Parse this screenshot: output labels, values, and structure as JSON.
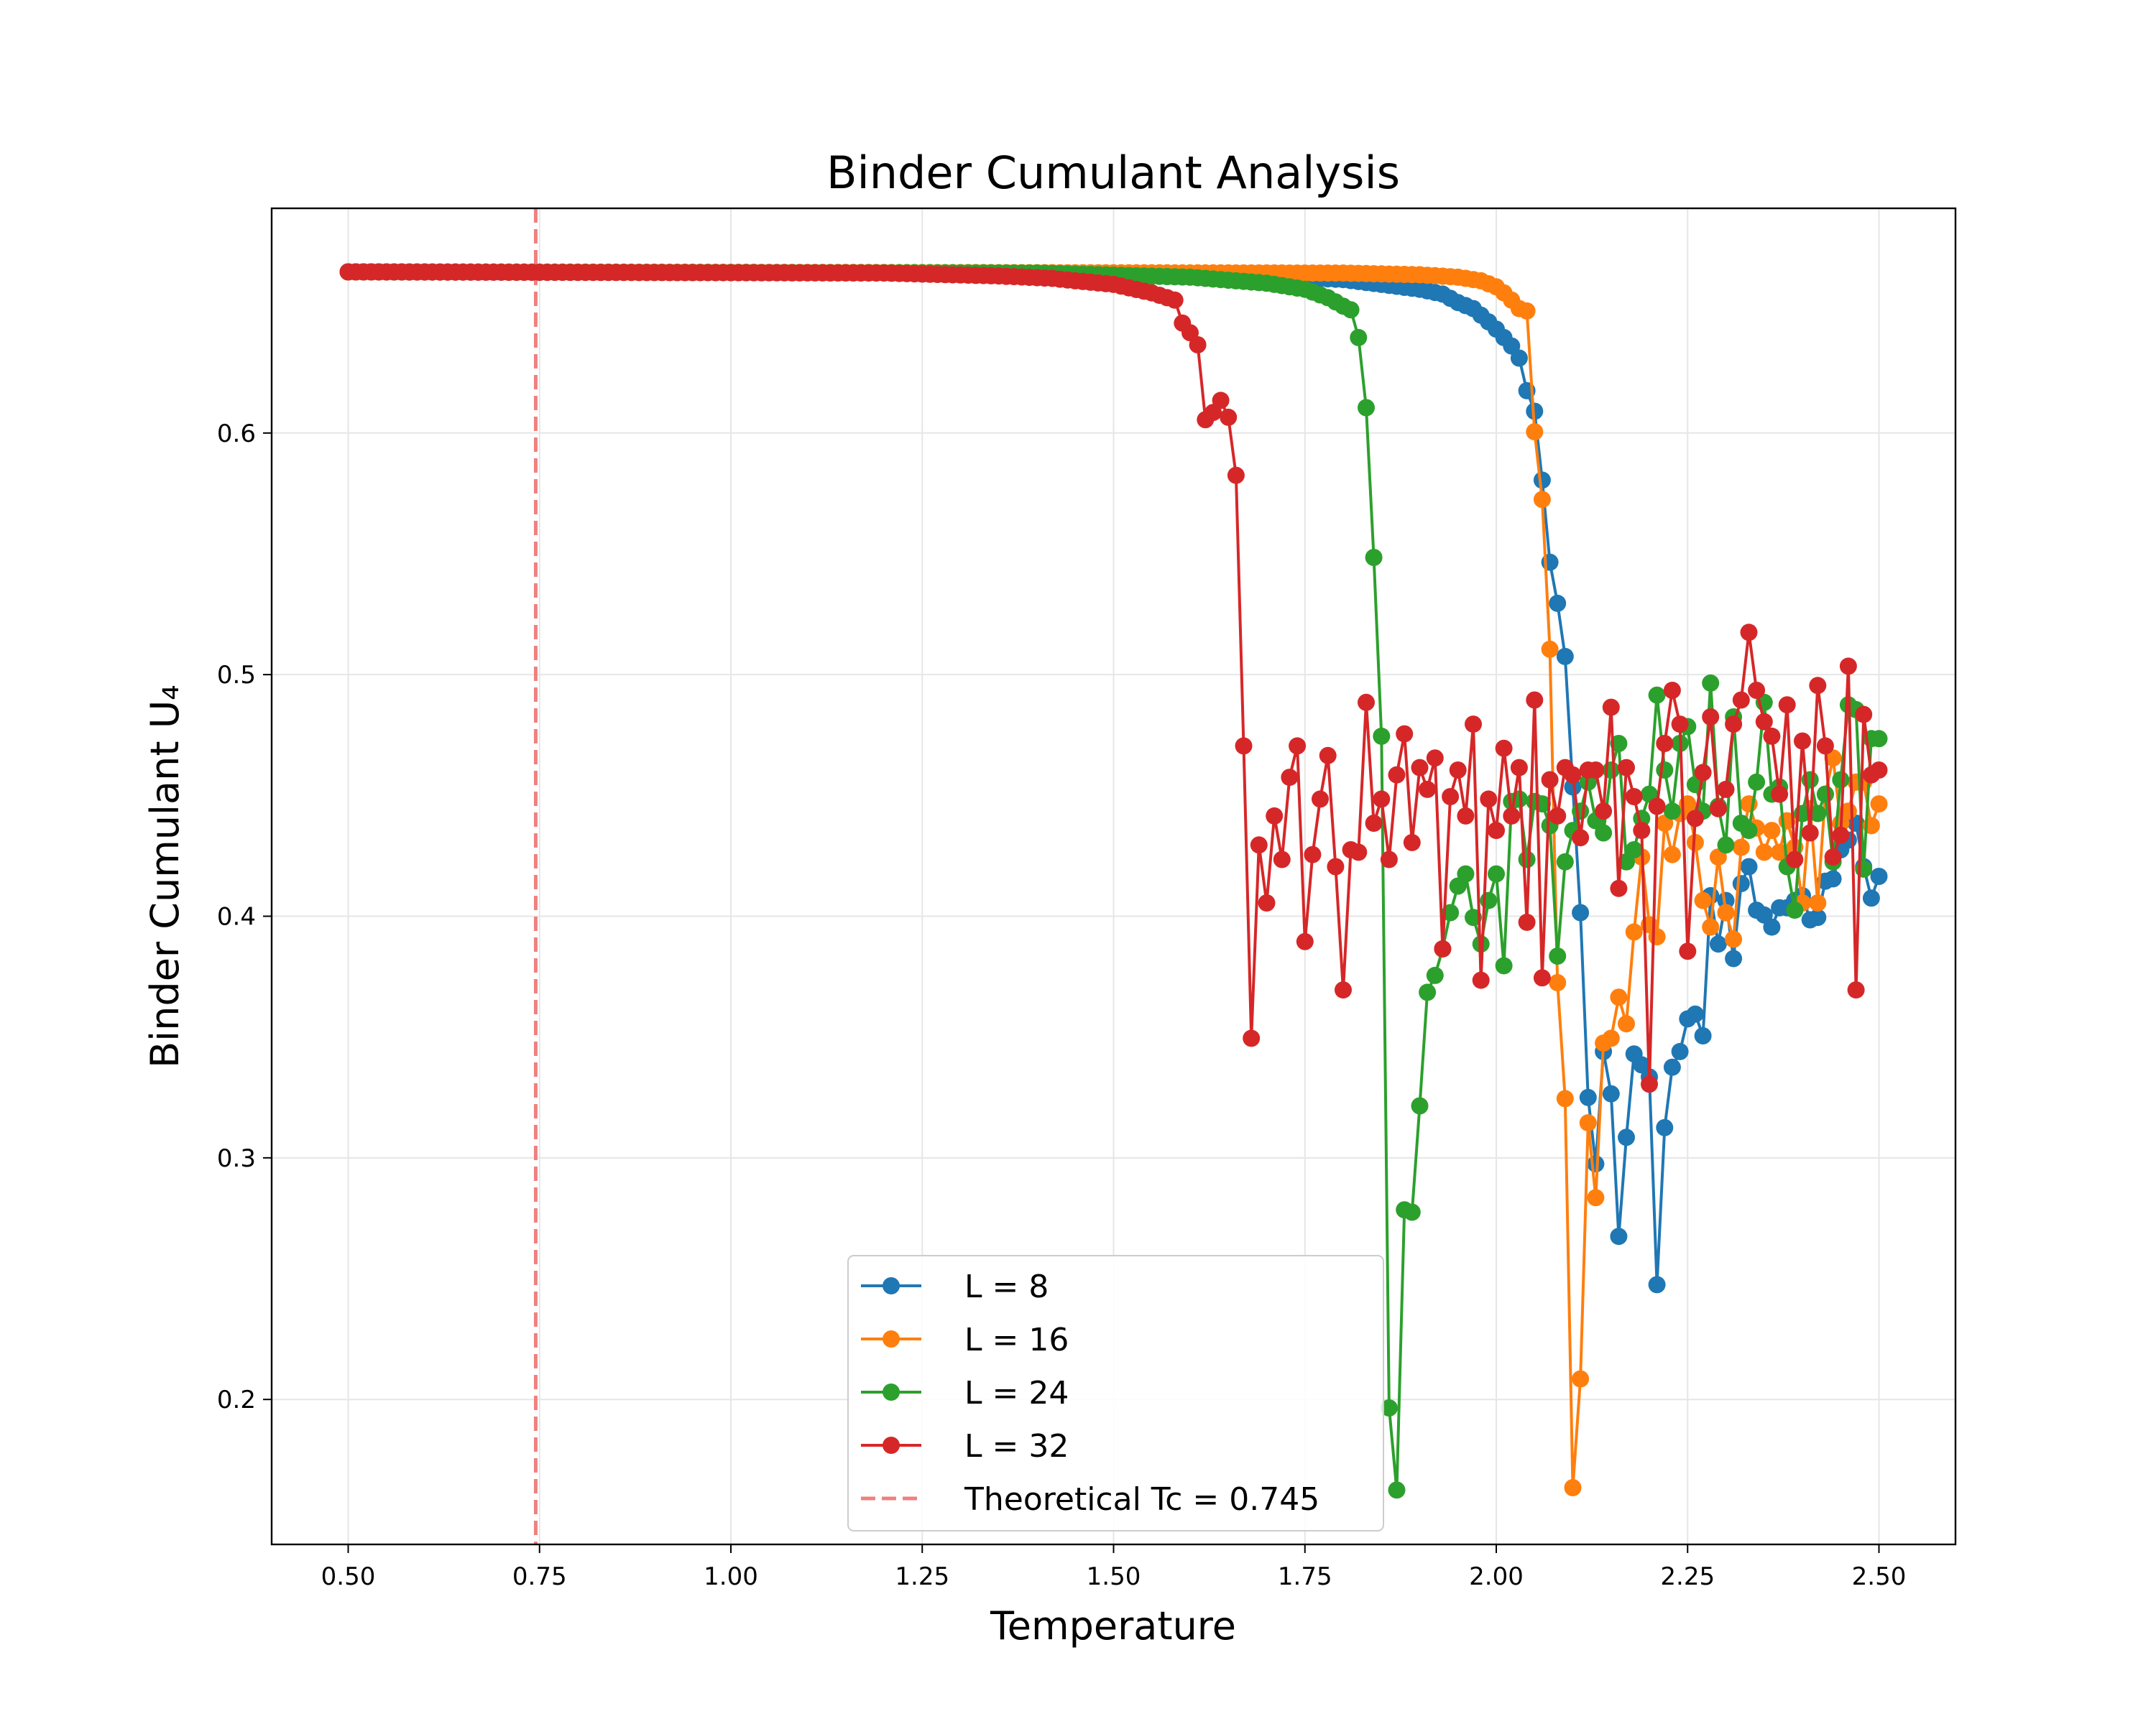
{
  "chart_data": {
    "type": "line",
    "title": "Binder Cumulant Analysis",
    "xlabel": "Temperature",
    "ylabel": "Binder Cumulant U₄",
    "xlim": [
      0.4,
      2.6
    ],
    "ylim": [
      0.14,
      0.693
    ],
    "xticks": [
      0.5,
      0.75,
      1.0,
      1.25,
      1.5,
      1.75,
      2.0,
      2.25,
      2.5
    ],
    "xtick_labels": [
      "0.50",
      "0.75",
      "1.00",
      "1.25",
      "1.50",
      "1.75",
      "2.00",
      "2.25",
      "2.50"
    ],
    "yticks": [
      0.2,
      0.3,
      0.4,
      0.5,
      0.6
    ],
    "ytick_labels": [
      "0.2",
      "0.3",
      "0.4",
      "0.5",
      "0.6"
    ],
    "grid": true,
    "legend_position": "lower-center",
    "reference_line": {
      "x": 0.745,
      "label": "Theoretical Tc = 0.745",
      "color": "#f08080",
      "style": "dashed"
    },
    "series": [
      {
        "name": "L = 8",
        "color": "#1f77b4",
        "points": [
          [
            0.5,
            0.6667
          ],
          [
            1.5,
            0.6662
          ],
          [
            1.7,
            0.665
          ],
          [
            1.8,
            0.6635
          ],
          [
            1.85,
            0.6615
          ],
          [
            1.9,
            0.6595
          ],
          [
            1.93,
            0.6575
          ],
          [
            1.95,
            0.654
          ],
          [
            1.97,
            0.6515
          ],
          [
            1.99,
            0.646
          ],
          [
            2.0,
            0.643
          ],
          [
            2.02,
            0.636
          ],
          [
            2.03,
            0.631
          ],
          [
            2.04,
            0.6175
          ],
          [
            2.05,
            0.609
          ],
          [
            2.06,
            0.5805
          ],
          [
            2.07,
            0.5465
          ],
          [
            2.08,
            0.5295
          ],
          [
            2.09,
            0.5075
          ],
          [
            2.1,
            0.4535
          ],
          [
            2.11,
            0.4015
          ],
          [
            2.12,
            0.325
          ],
          [
            2.13,
            0.2975
          ],
          [
            2.14,
            0.344
          ],
          [
            2.15,
            0.3265
          ],
          [
            2.16,
            0.2675
          ],
          [
            2.17,
            0.3085
          ],
          [
            2.18,
            0.343
          ],
          [
            2.19,
            0.3385
          ],
          [
            2.2,
            0.3335
          ],
          [
            2.21,
            0.2475
          ],
          [
            2.22,
            0.3125
          ],
          [
            2.23,
            0.3375
          ],
          [
            2.24,
            0.344
          ],
          [
            2.25,
            0.3575
          ],
          [
            2.26,
            0.3595
          ],
          [
            2.27,
            0.3505
          ],
          [
            2.28,
            0.4085
          ],
          [
            2.29,
            0.3885
          ],
          [
            2.3,
            0.4065
          ],
          [
            2.31,
            0.3825
          ],
          [
            2.32,
            0.4135
          ],
          [
            2.33,
            0.4205
          ],
          [
            2.34,
            0.4025
          ],
          [
            2.35,
            0.4005
          ],
          [
            2.36,
            0.3955
          ],
          [
            2.37,
            0.4035
          ],
          [
            2.38,
            0.4035
          ],
          [
            2.39,
            0.4065
          ],
          [
            2.4,
            0.4085
          ],
          [
            2.41,
            0.3985
          ],
          [
            2.42,
            0.3995
          ],
          [
            2.43,
            0.4145
          ],
          [
            2.44,
            0.4155
          ],
          [
            2.45,
            0.4275
          ],
          [
            2.46,
            0.4315
          ],
          [
            2.47,
            0.4385
          ],
          [
            2.48,
            0.4205
          ],
          [
            2.49,
            0.4075
          ],
          [
            2.5,
            0.4165
          ]
        ]
      },
      {
        "name": "L = 16",
        "color": "#ff7f0e",
        "points": [
          [
            0.5,
            0.6667
          ],
          [
            1.8,
            0.6662
          ],
          [
            1.9,
            0.6655
          ],
          [
            1.95,
            0.6645
          ],
          [
            1.98,
            0.663
          ],
          [
            2.0,
            0.6605
          ],
          [
            2.01,
            0.658
          ],
          [
            2.02,
            0.655
          ],
          [
            2.03,
            0.6515
          ],
          [
            2.04,
            0.6505
          ],
          [
            2.05,
            0.6005
          ],
          [
            2.06,
            0.5725
          ],
          [
            2.07,
            0.5105
          ],
          [
            2.08,
            0.3725
          ],
          [
            2.09,
            0.3245
          ],
          [
            2.1,
            0.1635
          ],
          [
            2.11,
            0.2085
          ],
          [
            2.12,
            0.3145
          ],
          [
            2.13,
            0.2835
          ],
          [
            2.14,
            0.3475
          ],
          [
            2.15,
            0.3495
          ],
          [
            2.16,
            0.3665
          ],
          [
            2.17,
            0.3555
          ],
          [
            2.18,
            0.3935
          ],
          [
            2.19,
            0.4245
          ],
          [
            2.2,
            0.3965
          ],
          [
            2.21,
            0.3915
          ],
          [
            2.22,
            0.4385
          ],
          [
            2.23,
            0.4255
          ],
          [
            2.24,
            0.4425
          ],
          [
            2.25,
            0.4465
          ],
          [
            2.26,
            0.4305
          ],
          [
            2.27,
            0.4065
          ],
          [
            2.28,
            0.3955
          ],
          [
            2.29,
            0.4245
          ],
          [
            2.3,
            0.4015
          ],
          [
            2.31,
            0.3905
          ],
          [
            2.32,
            0.4285
          ],
          [
            2.33,
            0.4465
          ],
          [
            2.34,
            0.4365
          ],
          [
            2.35,
            0.4265
          ],
          [
            2.36,
            0.4355
          ],
          [
            2.37,
            0.4265
          ],
          [
            2.38,
            0.4395
          ],
          [
            2.39,
            0.4285
          ],
          [
            2.4,
            0.4055
          ],
          [
            2.41,
            0.4445
          ],
          [
            2.42,
            0.4055
          ],
          [
            2.43,
            0.4505
          ],
          [
            2.44,
            0.4655
          ],
          [
            2.45,
            0.4385
          ],
          [
            2.46,
            0.4435
          ],
          [
            2.47,
            0.4555
          ],
          [
            2.48,
            0.4555
          ],
          [
            2.49,
            0.4375
          ],
          [
            2.5,
            0.4465
          ]
        ]
      },
      {
        "name": "L = 24",
        "color": "#2ca02c",
        "points": [
          [
            0.5,
            0.6667
          ],
          [
            1.4,
            0.6662
          ],
          [
            1.6,
            0.6645
          ],
          [
            1.7,
            0.662
          ],
          [
            1.75,
            0.6595
          ],
          [
            1.78,
            0.656
          ],
          [
            1.8,
            0.6525
          ],
          [
            1.81,
            0.651
          ],
          [
            1.82,
            0.6395
          ],
          [
            1.83,
            0.6105
          ],
          [
            1.84,
            0.5485
          ],
          [
            1.85,
            0.4745
          ],
          [
            1.86,
            0.1965
          ],
          [
            1.87,
            0.1625
          ],
          [
            1.88,
            0.2785
          ],
          [
            1.89,
            0.2775
          ],
          [
            1.9,
            0.3215
          ],
          [
            1.91,
            0.3685
          ],
          [
            1.92,
            0.3755
          ],
          [
            1.93,
            0.3865
          ],
          [
            1.94,
            0.4015
          ],
          [
            1.95,
            0.4125
          ],
          [
            1.96,
            0.4175
          ],
          [
            1.97,
            0.3995
          ],
          [
            1.98,
            0.3885
          ],
          [
            1.99,
            0.4065
          ],
          [
            2.0,
            0.4175
          ],
          [
            2.01,
            0.3795
          ],
          [
            2.02,
            0.4475
          ],
          [
            2.03,
            0.4485
          ],
          [
            2.04,
            0.4235
          ],
          [
            2.05,
            0.4475
          ],
          [
            2.06,
            0.4465
          ],
          [
            2.07,
            0.4375
          ],
          [
            2.08,
            0.3835
          ],
          [
            2.09,
            0.4225
          ],
          [
            2.1,
            0.4355
          ],
          [
            2.11,
            0.4435
          ],
          [
            2.12,
            0.4555
          ],
          [
            2.13,
            0.4395
          ],
          [
            2.14,
            0.4345
          ],
          [
            2.15,
            0.4605
          ],
          [
            2.16,
            0.4715
          ],
          [
            2.17,
            0.4225
          ],
          [
            2.18,
            0.4275
          ],
          [
            2.19,
            0.4405
          ],
          [
            2.2,
            0.4505
          ],
          [
            2.21,
            0.4915
          ],
          [
            2.22,
            0.4605
          ],
          [
            2.23,
            0.4435
          ],
          [
            2.24,
            0.4715
          ],
          [
            2.25,
            0.4785
          ],
          [
            2.26,
            0.4545
          ],
          [
            2.27,
            0.4435
          ],
          [
            2.28,
            0.4965
          ],
          [
            2.29,
            0.4455
          ],
          [
            2.3,
            0.4295
          ],
          [
            2.31,
            0.4825
          ],
          [
            2.32,
            0.4385
          ],
          [
            2.33,
            0.4355
          ],
          [
            2.34,
            0.4555
          ],
          [
            2.35,
            0.4885
          ],
          [
            2.36,
            0.4505
          ],
          [
            2.37,
            0.4535
          ],
          [
            2.38,
            0.4205
          ],
          [
            2.39,
            0.4025
          ],
          [
            2.4,
            0.4425
          ],
          [
            2.41,
            0.4565
          ],
          [
            2.42,
            0.4425
          ],
          [
            2.43,
            0.4505
          ],
          [
            2.44,
            0.4225
          ],
          [
            2.45,
            0.4565
          ],
          [
            2.46,
            0.4875
          ],
          [
            2.47,
            0.4855
          ],
          [
            2.48,
            0.4195
          ],
          [
            2.49,
            0.4735
          ],
          [
            2.5,
            0.4735
          ]
        ]
      },
      {
        "name": "L = 32",
        "color": "#d62728",
        "points": [
          [
            0.5,
            0.6667
          ],
          [
            1.2,
            0.6662
          ],
          [
            1.35,
            0.665
          ],
          [
            1.42,
            0.664
          ],
          [
            1.45,
            0.663
          ],
          [
            1.5,
            0.6615
          ],
          [
            1.55,
            0.658
          ],
          [
            1.58,
            0.655
          ],
          [
            1.59,
            0.6455
          ],
          [
            1.6,
            0.6415
          ],
          [
            1.61,
            0.6365
          ],
          [
            1.62,
            0.6055
          ],
          [
            1.63,
            0.6085
          ],
          [
            1.64,
            0.6135
          ],
          [
            1.65,
            0.6065
          ],
          [
            1.66,
            0.5825
          ],
          [
            1.67,
            0.4705
          ],
          [
            1.68,
            0.3495
          ],
          [
            1.69,
            0.4295
          ],
          [
            1.7,
            0.4055
          ],
          [
            1.71,
            0.4415
          ],
          [
            1.72,
            0.4235
          ],
          [
            1.73,
            0.4575
          ],
          [
            1.74,
            0.4705
          ],
          [
            1.75,
            0.3895
          ],
          [
            1.76,
            0.4255
          ],
          [
            1.77,
            0.4485
          ],
          [
            1.78,
            0.4665
          ],
          [
            1.79,
            0.4205
          ],
          [
            1.8,
            0.3695
          ],
          [
            1.81,
            0.4275
          ],
          [
            1.82,
            0.4265
          ],
          [
            1.83,
            0.4885
          ],
          [
            1.84,
            0.4385
          ],
          [
            1.85,
            0.4485
          ],
          [
            1.86,
            0.4235
          ],
          [
            1.87,
            0.4585
          ],
          [
            1.88,
            0.4755
          ],
          [
            1.89,
            0.4305
          ],
          [
            1.9,
            0.4615
          ],
          [
            1.91,
            0.4525
          ],
          [
            1.92,
            0.4655
          ],
          [
            1.93,
            0.3865
          ],
          [
            1.94,
            0.4495
          ],
          [
            1.95,
            0.4605
          ],
          [
            1.96,
            0.4415
          ],
          [
            1.97,
            0.4795
          ],
          [
            1.98,
            0.3735
          ],
          [
            1.99,
            0.4485
          ],
          [
            2.0,
            0.4355
          ],
          [
            2.01,
            0.4695
          ],
          [
            2.02,
            0.4415
          ],
          [
            2.03,
            0.4615
          ],
          [
            2.04,
            0.3975
          ],
          [
            2.05,
            0.4895
          ],
          [
            2.06,
            0.3745
          ],
          [
            2.07,
            0.4565
          ],
          [
            2.08,
            0.4415
          ],
          [
            2.09,
            0.4615
          ],
          [
            2.1,
            0.4585
          ],
          [
            2.11,
            0.4325
          ],
          [
            2.12,
            0.4605
          ],
          [
            2.13,
            0.4605
          ],
          [
            2.14,
            0.4435
          ],
          [
            2.15,
            0.4865
          ],
          [
            2.16,
            0.4115
          ],
          [
            2.17,
            0.4615
          ],
          [
            2.18,
            0.4495
          ],
          [
            2.19,
            0.4355
          ],
          [
            2.2,
            0.3305
          ],
          [
            2.21,
            0.4455
          ],
          [
            2.22,
            0.4715
          ],
          [
            2.23,
            0.4935
          ],
          [
            2.24,
            0.4795
          ],
          [
            2.25,
            0.3855
          ],
          [
            2.26,
            0.4405
          ],
          [
            2.27,
            0.4595
          ],
          [
            2.28,
            0.4825
          ],
          [
            2.29,
            0.4445
          ],
          [
            2.3,
            0.4525
          ],
          [
            2.31,
            0.4795
          ],
          [
            2.32,
            0.4895
          ],
          [
            2.33,
            0.5175
          ],
          [
            2.34,
            0.4935
          ],
          [
            2.35,
            0.4805
          ],
          [
            2.36,
            0.4745
          ],
          [
            2.37,
            0.4505
          ],
          [
            2.38,
            0.4875
          ],
          [
            2.39,
            0.4235
          ],
          [
            2.4,
            0.4725
          ],
          [
            2.41,
            0.4345
          ],
          [
            2.42,
            0.4955
          ],
          [
            2.43,
            0.4705
          ],
          [
            2.44,
            0.4245
          ],
          [
            2.45,
            0.4335
          ],
          [
            2.46,
            0.5035
          ],
          [
            2.47,
            0.3695
          ],
          [
            2.48,
            0.4835
          ],
          [
            2.49,
            0.4585
          ],
          [
            2.5,
            0.4605
          ]
        ]
      }
    ]
  }
}
